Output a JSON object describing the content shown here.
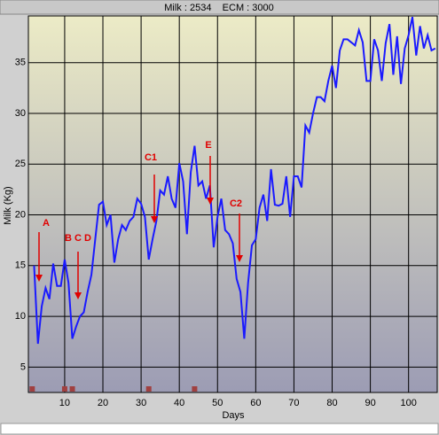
{
  "chart_data": {
    "type": "line",
    "title": "Milk : 2534    ECM : 3000",
    "xlabel": "Days",
    "ylabel": "Milk (Kg)",
    "x": [
      2,
      3,
      4,
      5,
      6,
      7,
      8,
      9,
      10,
      11,
      12,
      13,
      14,
      15,
      16,
      17,
      18,
      19,
      20,
      21,
      22,
      23,
      24,
      25,
      26,
      27,
      28,
      29,
      30,
      31,
      32,
      33,
      34,
      35,
      36,
      37,
      38,
      39,
      40,
      41,
      42,
      43,
      44,
      45,
      46,
      47,
      48,
      49,
      50,
      51,
      52,
      53,
      54,
      55,
      56,
      57,
      58,
      59,
      60,
      61,
      62,
      63,
      64,
      65,
      66,
      67,
      68,
      69,
      70,
      71,
      72,
      73,
      74,
      75,
      76,
      77,
      78,
      79,
      80,
      81,
      82,
      83,
      84,
      85,
      86,
      87,
      88,
      89,
      90,
      91,
      92,
      93,
      94,
      95,
      96,
      97,
      98,
      99,
      100,
      101,
      102,
      103,
      104,
      105,
      106,
      107
    ],
    "series": [
      {
        "name": "Milk",
        "color": "#1a1aff",
        "values": [
          15,
          7.3,
          11,
          12.8,
          11.7,
          15.2,
          13,
          13,
          15.6,
          13.3,
          7.8,
          9,
          10,
          10.4,
          12.4,
          14.1,
          17.6,
          21,
          21.3,
          19,
          20,
          15.3,
          17.6,
          19,
          18.5,
          19.4,
          19.8,
          21.6,
          21.1,
          19.8,
          15.6,
          17.6,
          19.4,
          22.4,
          22,
          23.8,
          21.6,
          20.7,
          25.1,
          23.3,
          18.1,
          24.2,
          26.8,
          22.9,
          23.3,
          21.6,
          22.9,
          16.8,
          19.8,
          21.6,
          18.5,
          18.1,
          17.2,
          13.7,
          12.4,
          7.8,
          13.3,
          17,
          17.6,
          20.7,
          22,
          19.4,
          24.5,
          21,
          20.9,
          21.1,
          23.8,
          19.8,
          23.8,
          23.8,
          22.7,
          28.8,
          28.1,
          30,
          31.6,
          31.6,
          31.2,
          33.2,
          34.7,
          32.5,
          36.2,
          37.3,
          37.3,
          37,
          36.7,
          38.2,
          37,
          33.2,
          33.2,
          37.3,
          36.2,
          33.2,
          36.9,
          38.8,
          33.8,
          37.6,
          32.9,
          36.4,
          37.7,
          39.5,
          35.7,
          38.6,
          36.4,
          37.7,
          36.2,
          36.4
        ]
      }
    ],
    "events": {
      "color": "#a04040",
      "x": [
        1.5,
        10,
        12,
        32,
        44
      ]
    },
    "annotations": [
      "A",
      "B C D",
      "C1",
      "E",
      "C2"
    ],
    "annotation_color": "#e00000",
    "xlim": [
      0.5,
      107.5
    ],
    "ylim": [
      2.5,
      39.6
    ],
    "xticks": [
      10,
      20,
      30,
      40,
      50,
      60,
      70,
      80,
      90,
      100
    ],
    "yticks": [
      5,
      10,
      15,
      20,
      25,
      30,
      35
    ],
    "grid": true
  }
}
